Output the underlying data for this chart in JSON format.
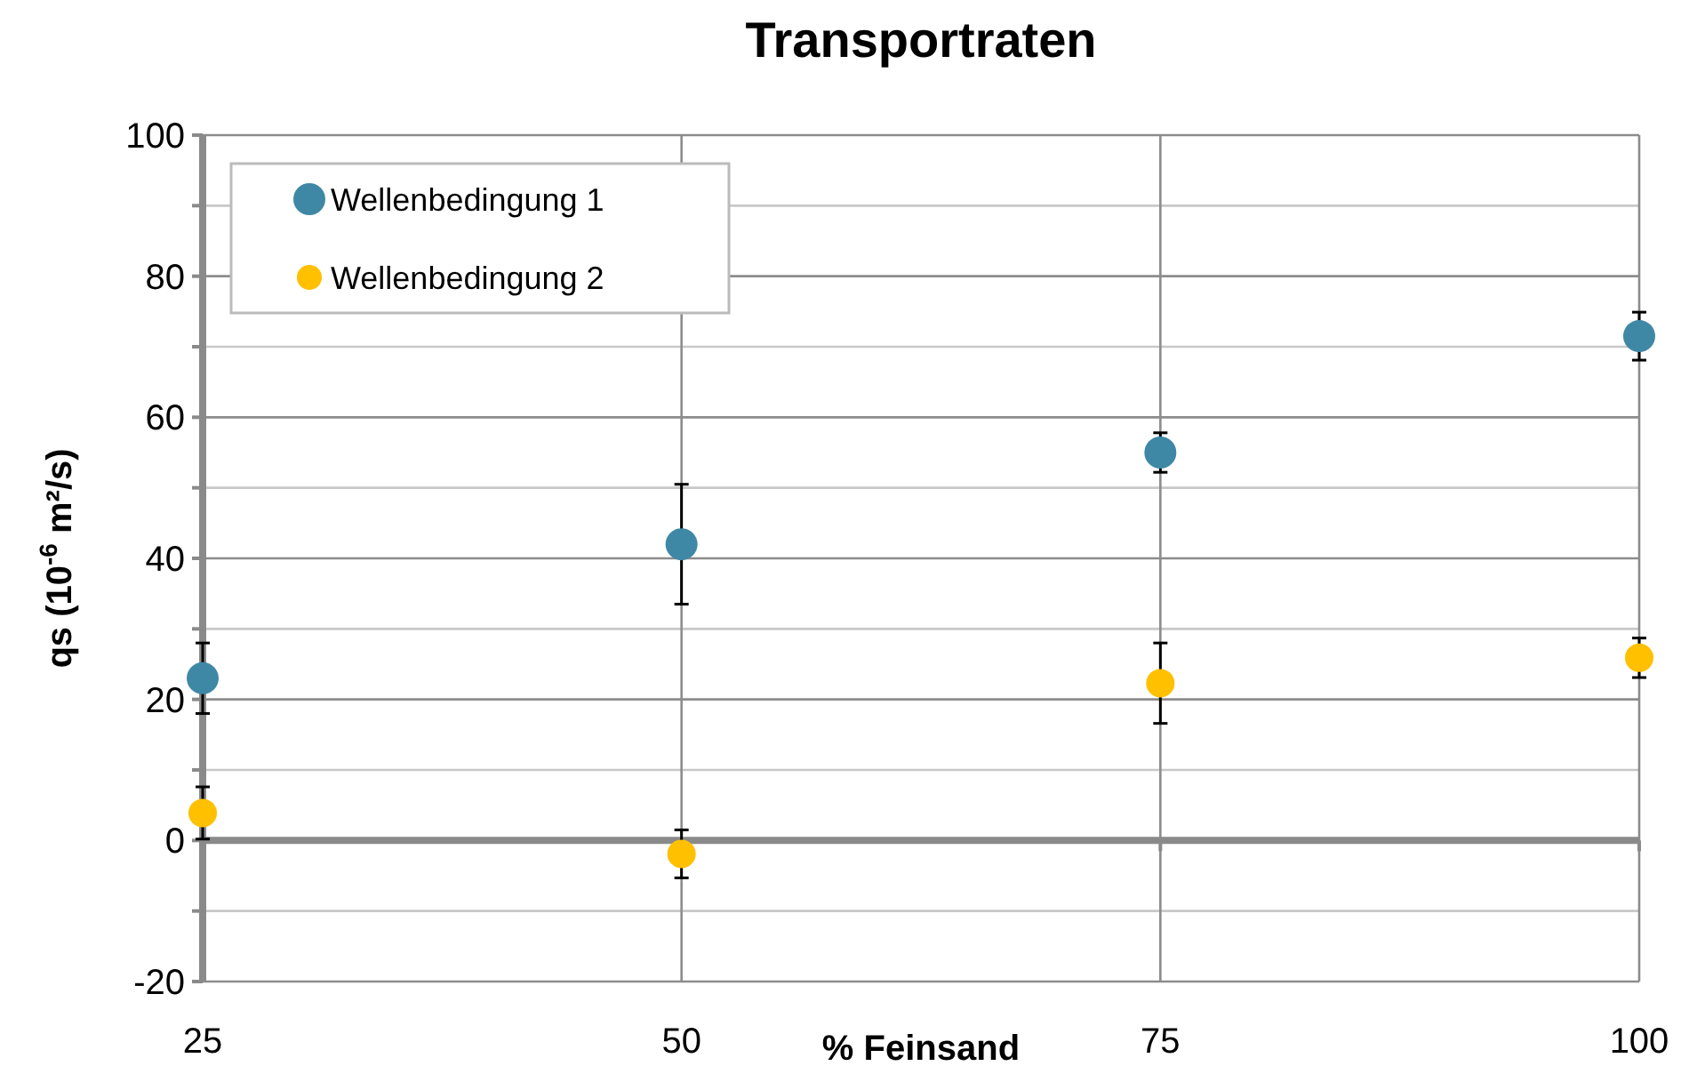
{
  "chart_data": {
    "type": "scatter",
    "title": "Transportraten",
    "xlabel": "% Feinsand",
    "ylabel": "qs (10$^{-6}$ m²/s)",
    "x": [
      25,
      50,
      75,
      100
    ],
    "series": [
      {
        "name": "Wellenbedingung 1",
        "color": "#3f88a5",
        "values": [
          23,
          42,
          55,
          71.5
        ],
        "errors": [
          5,
          8.5,
          2.8,
          3.4
        ]
      },
      {
        "name": "Wellenbedingung 2",
        "color": "#ffc000",
        "values": [
          3.9,
          -1.9,
          22.3,
          25.9
        ],
        "errors": [
          3.7,
          3.4,
          5.7,
          2.8
        ]
      }
    ],
    "xlim": [
      25,
      100
    ],
    "xticks": [
      25,
      50,
      75,
      100
    ],
    "ylim": [
      -20,
      100
    ],
    "yticks": [
      -20,
      {
        "value": -10,
        "label": null
      },
      0,
      {
        "value": 10,
        "label": null
      },
      20,
      {
        "value": 30,
        "label": null
      },
      40,
      {
        "value": 50,
        "label": null
      },
      60,
      {
        "value": 70,
        "label": null
      },
      80,
      {
        "value": 90,
        "label": null
      },
      100
    ],
    "grid": true,
    "legend": "top left",
    "marker": "circle"
  }
}
